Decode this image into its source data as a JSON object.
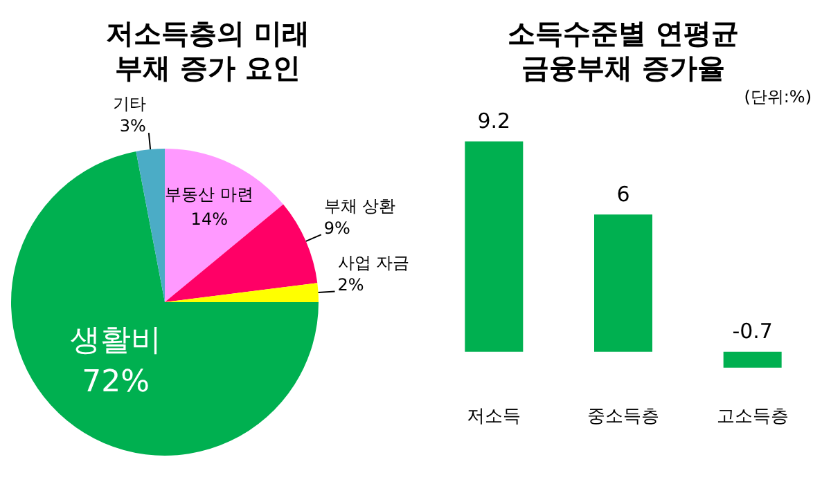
{
  "chart_data": [
    {
      "type": "pie",
      "title": "저소득층의 미래 부채 증가 요인",
      "categories": [
        "부동산 마련",
        "부채 상환",
        "사업 자금",
        "생활비",
        "기타"
      ],
      "values": [
        14,
        9,
        2,
        72,
        3
      ],
      "colors": [
        "#ff99ff",
        "#ff0066",
        "#ffff00",
        "#00b050",
        "#4bacc6"
      ],
      "value_labels": [
        "14%",
        "9%",
        "2%",
        "72%",
        "3%"
      ],
      "legend": false
    },
    {
      "type": "bar",
      "title": "소득수준별 연평균 금융부채 증가율",
      "subtitle": "(단위:%)",
      "categories": [
        "저소득",
        "중소득층",
        "고소득층"
      ],
      "values": [
        9.2,
        6,
        -0.7
      ],
      "color": "#00b050",
      "data_labels": true,
      "tick_labels": "x",
      "legend": false,
      "grid": false
    }
  ]
}
